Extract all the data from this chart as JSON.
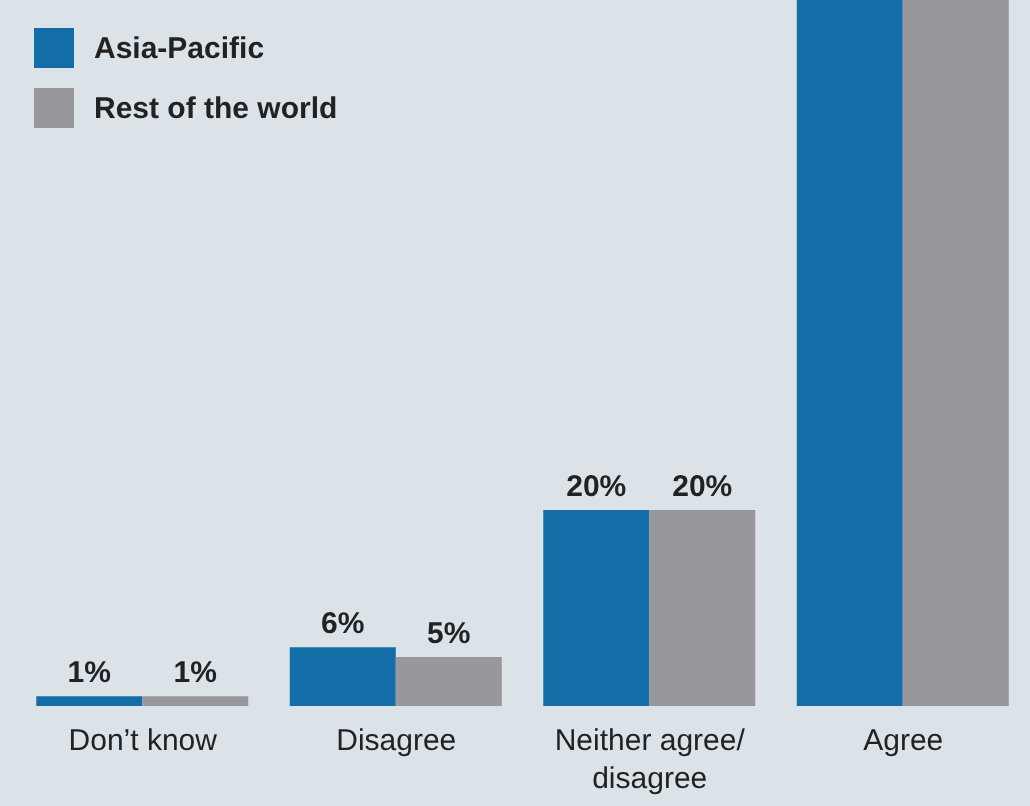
{
  "chart_data": {
    "type": "bar",
    "categories": [
      "Don’t know",
      "Disagree",
      "Neither agree/ disagree",
      "Agree"
    ],
    "series": [
      {
        "name": "Asia-Pacific",
        "color": "#136ea8",
        "values": [
          1,
          6,
          20,
          72
        ],
        "value_labels": [
          "1%",
          "6%",
          "20%",
          null
        ]
      },
      {
        "name": "Rest of the world",
        "color": "#98979b",
        "values": [
          1,
          5,
          20,
          72
        ],
        "value_labels": [
          "1%",
          "5%",
          "20%",
          null
        ]
      }
    ],
    "ylim": [
      0,
      72
    ],
    "tick_labels": "x",
    "legend": "top left"
  }
}
